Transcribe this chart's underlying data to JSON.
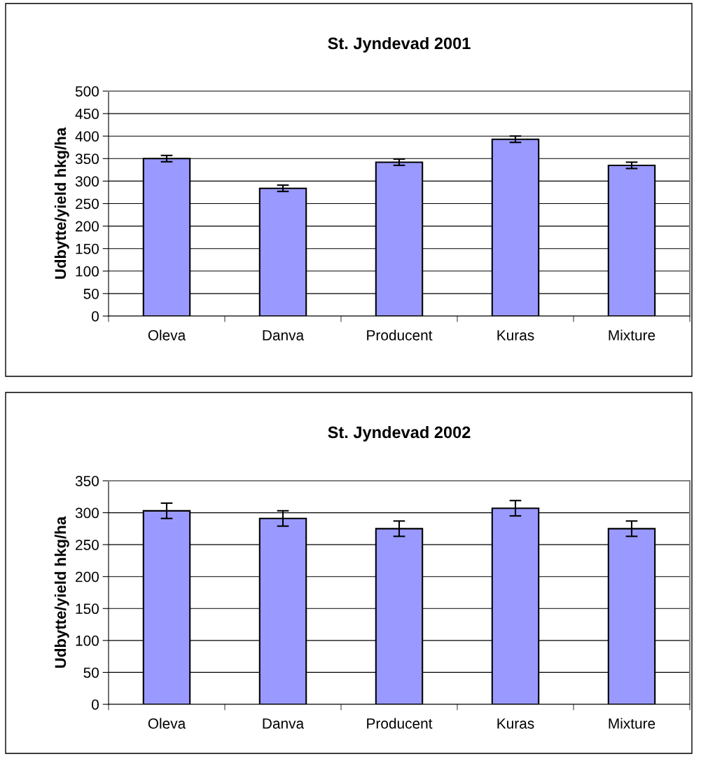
{
  "chart_data": [
    {
      "type": "bar",
      "title": "St. Jyndevad 2001",
      "ylabel": "Udbytte/yield hkg/ha",
      "categories": [
        "Oleva",
        "Danva",
        "Producent",
        "Kuras",
        "Mixture"
      ],
      "values": [
        350,
        284,
        342,
        393,
        335
      ],
      "errors": [
        7,
        7,
        7,
        7,
        7
      ],
      "color": "#9999ff",
      "ylim": [
        0,
        500
      ],
      "yticks": [
        0,
        50,
        100,
        150,
        200,
        250,
        300,
        350,
        400,
        450,
        500
      ],
      "grid": "y",
      "legend": false
    },
    {
      "type": "bar",
      "title": "St. Jyndevad 2002",
      "ylabel": "Udbytte/yield hkg/ha",
      "categories": [
        "Oleva",
        "Danva",
        "Producent",
        "Kuras",
        "Mixture"
      ],
      "values": [
        303,
        291,
        275,
        307,
        275
      ],
      "errors": [
        12,
        12,
        12,
        12,
        12
      ],
      "color": "#9999ff",
      "ylim": [
        0,
        350
      ],
      "yticks": [
        0,
        50,
        100,
        150,
        200,
        250,
        300,
        350
      ],
      "grid": "y",
      "legend": false
    }
  ]
}
